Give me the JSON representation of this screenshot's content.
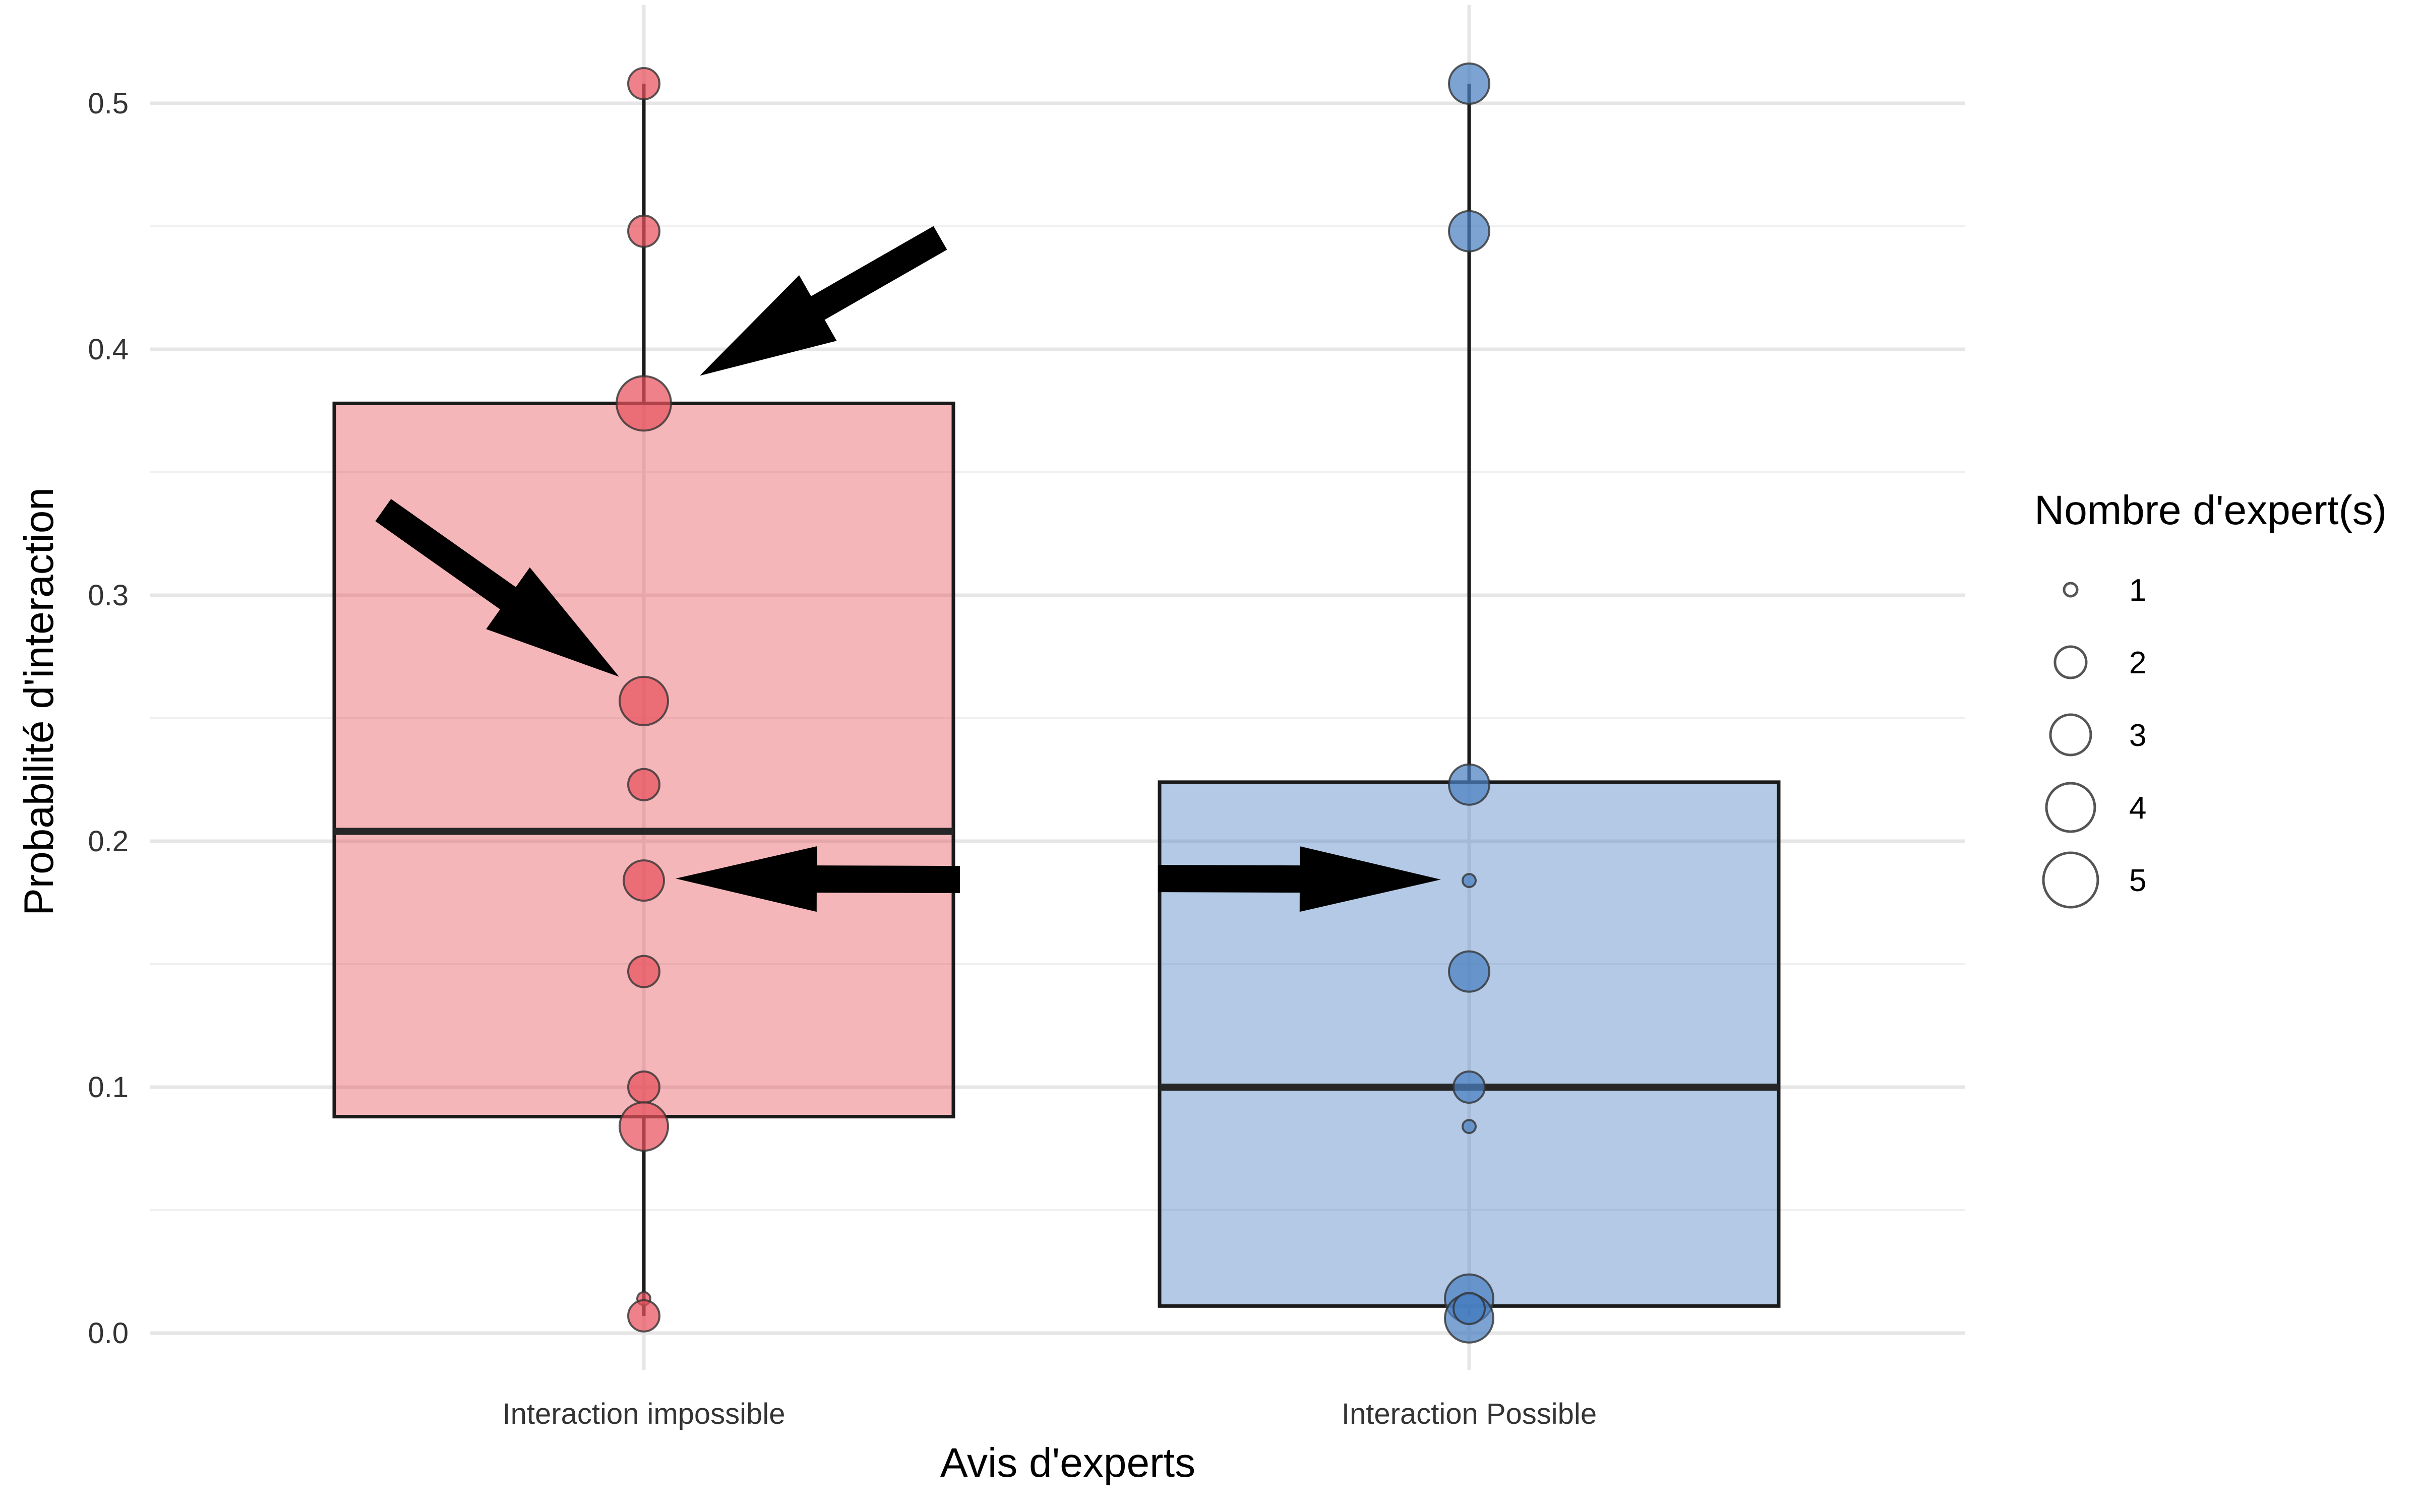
{
  "chart_data": {
    "type": "boxplot",
    "xlabel": "Avis d'experts",
    "ylabel": "Probabilité d'interaction",
    "ylim": [
      -0.015,
      0.54
    ],
    "yticks": [
      0.0,
      0.1,
      0.2,
      0.3,
      0.4,
      0.5
    ],
    "ytick_labels": [
      "0.0",
      "0.1",
      "0.2",
      "0.3",
      "0.4",
      "0.5"
    ],
    "grid": true,
    "legend": {
      "title": "Nombre d'expert(s)",
      "placement": "right",
      "entries": [
        {
          "label": "1",
          "size": 1
        },
        {
          "label": "2",
          "size": 2
        },
        {
          "label": "3",
          "size": 3
        },
        {
          "label": "4",
          "size": 4
        },
        {
          "label": "5",
          "size": 5
        }
      ]
    },
    "groups": [
      {
        "category": "Interaction impossible",
        "fill": "#e8505b",
        "box": {
          "lower_whisker": 0.007,
          "q1": 0.088,
          "median": 0.204,
          "q3": 0.378,
          "upper_whisker": 0.508
        },
        "points": [
          {
            "y": 0.508,
            "count": 2
          },
          {
            "y": 0.448,
            "count": 2
          },
          {
            "y": 0.378,
            "count": 5
          },
          {
            "y": 0.257,
            "count": 4
          },
          {
            "y": 0.223,
            "count": 2
          },
          {
            "y": 0.184,
            "count": 3
          },
          {
            "y": 0.147,
            "count": 2
          },
          {
            "y": 0.1,
            "count": 2
          },
          {
            "y": 0.084,
            "count": 4
          },
          {
            "y": 0.014,
            "count": 1
          },
          {
            "y": 0.007,
            "count": 2
          }
        ]
      },
      {
        "category": "Interaction Possible",
        "fill": "#4a7fc1",
        "box": {
          "lower_whisker": 0.007,
          "q1": 0.011,
          "median": 0.1,
          "q3": 0.224,
          "upper_whisker": 0.508
        },
        "points": [
          {
            "y": 0.508,
            "count": 3
          },
          {
            "y": 0.448,
            "count": 3
          },
          {
            "y": 0.223,
            "count": 3
          },
          {
            "y": 0.184,
            "count": 1
          },
          {
            "y": 0.147,
            "count": 3
          },
          {
            "y": 0.1,
            "count": 2
          },
          {
            "y": 0.084,
            "count": 1
          },
          {
            "y": 0.014,
            "count": 4
          },
          {
            "y": 0.006,
            "count": 4
          },
          {
            "y": 0.01,
            "count": 2
          }
        ]
      }
    ],
    "annotations": [
      {
        "type": "arrow",
        "group": 0,
        "target_y": 0.378
      },
      {
        "type": "arrow",
        "group": 0,
        "target_y": 0.257
      },
      {
        "type": "arrow",
        "group": 0,
        "target_y": 0.184
      },
      {
        "type": "arrow",
        "group": 1,
        "target_y": 0.184
      }
    ]
  }
}
